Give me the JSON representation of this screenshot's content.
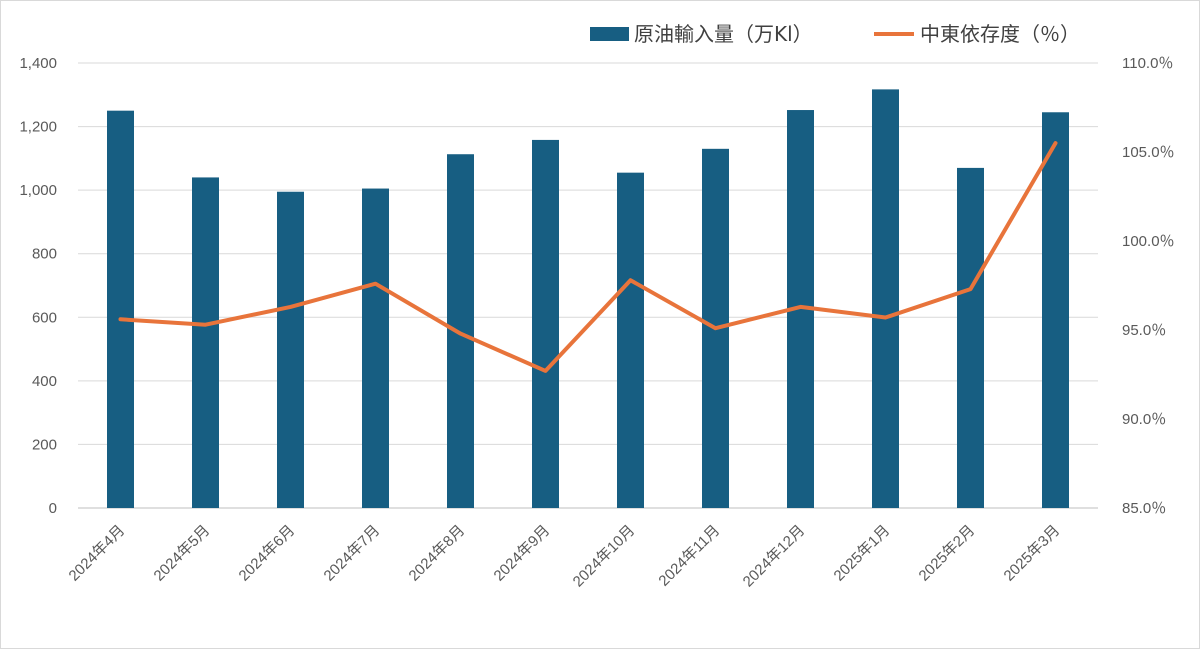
{
  "chart_data": {
    "type": "bar",
    "categories": [
      "2024年4月",
      "2024年5月",
      "2024年6月",
      "2024年7月",
      "2024年8月",
      "2024年9月",
      "2024年10月",
      "2024年11月",
      "2024年12月",
      "2025年1月",
      "2025年2月",
      "2025年3月"
    ],
    "series": [
      {
        "name": "原油輸入量（万Kl）",
        "type": "bar",
        "axis": "left",
        "color": "#175e82",
        "values": [
          1250,
          1040,
          995,
          1005,
          1113,
          1158,
          1055,
          1130,
          1252,
          1317,
          1070,
          1245
        ]
      },
      {
        "name": "中東依存度（％）",
        "type": "line",
        "axis": "right",
        "color": "#e8743b",
        "values": [
          95.6,
          95.3,
          96.3,
          97.6,
          94.8,
          92.7,
          97.8,
          95.1,
          96.3,
          95.7,
          97.3,
          105.5
        ]
      }
    ],
    "y_left": {
      "ylim": [
        0,
        1400
      ],
      "ticks": [
        0,
        200,
        400,
        600,
        800,
        1000,
        1200,
        1400
      ],
      "tick_labels": [
        "0",
        "200",
        "400",
        "600",
        "800",
        "1,000",
        "1,200",
        "1,400"
      ]
    },
    "y_right": {
      "ylim": [
        85,
        110
      ],
      "ticks": [
        85,
        90,
        95,
        100,
        105,
        110
      ],
      "tick_labels": [
        "85.0％",
        "90.0％",
        "95.0％",
        "100.0％",
        "105.0％",
        "110.0％"
      ]
    },
    "grid": true,
    "legend_position": "top-right",
    "title": "",
    "xlabel": "",
    "ylabel": ""
  }
}
